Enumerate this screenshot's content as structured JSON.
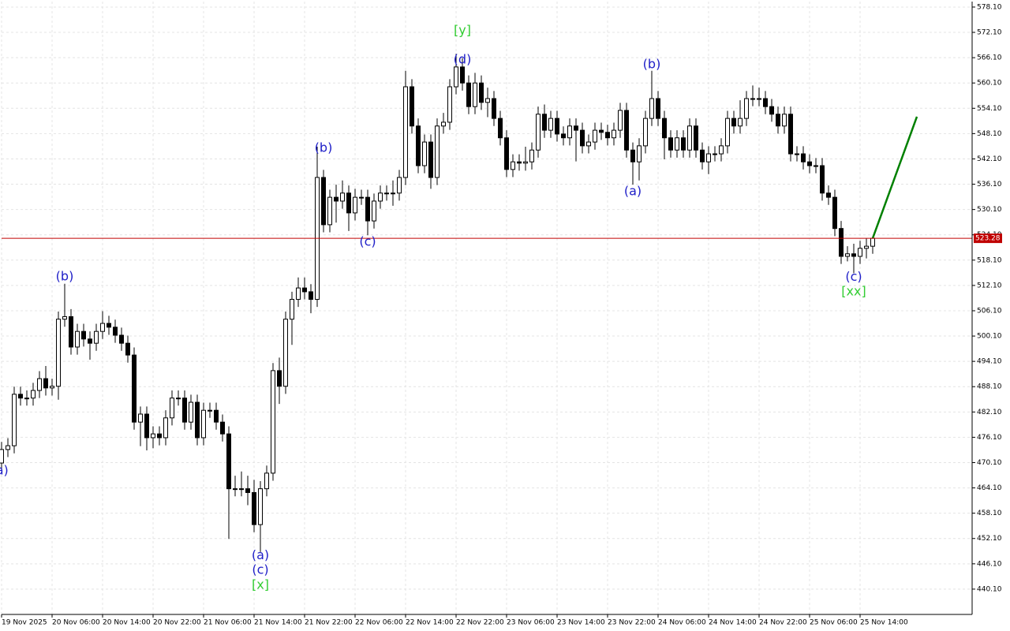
{
  "chart_data": {
    "type": "candlestick",
    "categories": [
      "19 Nov 2025",
      null,
      null,
      null,
      null,
      null,
      null,
      null,
      "20 Nov 06:00",
      null,
      null,
      null,
      null,
      null,
      null,
      null,
      "20 Nov 14:00",
      null,
      null,
      null,
      null,
      null,
      null,
      null,
      "20 Nov 22:00",
      null,
      null,
      null,
      null,
      null,
      null,
      null,
      "21 Nov 06:00",
      null,
      null,
      null,
      null,
      null,
      null,
      null,
      "21 Nov 14:00",
      null,
      null,
      null,
      null,
      null,
      null,
      null,
      "21 Nov 22:00",
      null,
      null,
      null,
      null,
      null,
      null,
      null,
      "22 Nov 06:00",
      null,
      null,
      null,
      null,
      null,
      null,
      null,
      "22 Nov 14:00",
      null,
      null,
      null,
      null,
      null,
      null,
      null,
      "22 Nov 22:00",
      null,
      null,
      null,
      null,
      null,
      null,
      null,
      "23 Nov 06:00",
      null,
      null,
      null,
      null,
      null,
      null,
      null,
      "23 Nov 14:00",
      null,
      null,
      null,
      null,
      null,
      null,
      null,
      "23 Nov 22:00",
      null,
      null,
      null,
      null,
      null,
      null,
      null,
      "24 Nov 06:00",
      null,
      null,
      null,
      null,
      null,
      null,
      null,
      "24 Nov 14:00",
      null,
      null,
      null,
      null,
      null,
      null,
      null,
      "24 Nov 22:00",
      null,
      null,
      null,
      null,
      null,
      null,
      null,
      "25 Nov 06:00",
      null,
      null,
      null,
      null,
      null,
      null,
      null,
      "25 Nov 14:00",
      null,
      null
    ],
    "open": [
      470.0,
      473.2,
      474.1,
      486.3,
      485.4,
      485.4,
      487.2,
      490.0,
      487.8,
      488.2,
      504.1,
      504.7,
      497.5,
      501.2,
      499.4,
      498.4,
      501.2,
      503.1,
      502.2,
      500.3,
      498.4,
      495.6,
      479.7,
      481.6,
      476.0,
      476.9,
      476.0,
      480.7,
      485.4,
      485.4,
      479.7,
      484.4,
      476.0,
      482.5,
      482.5,
      479.7,
      476.9,
      463.9,
      463.9,
      463.9,
      463.0,
      455.4,
      463.9,
      467.6,
      491.9,
      488.2,
      504.1,
      508.8,
      511.5,
      510.6,
      508.8,
      537.7,
      526.5,
      533.0,
      532.1,
      534.0,
      529.3,
      533.0,
      533.0,
      527.4,
      532.1,
      534.0,
      534.0,
      534.0,
      537.7,
      559.2,
      549.9,
      540.5,
      546.1,
      537.7,
      549.9,
      550.8,
      559.2,
      563.9,
      560.1,
      554.5,
      560.1,
      555.5,
      556.4,
      551.7,
      547.1,
      539.6,
      541.4,
      541.1,
      541.4,
      544.2,
      552.7,
      548.9,
      551.7,
      548.0,
      547.1,
      549.9,
      548.9,
      545.2,
      546.1,
      548.9,
      548.4,
      547.1,
      548.9,
      553.6,
      544.2,
      541.4,
      545.2,
      551.7,
      556.4,
      551.7,
      547.1,
      544.2,
      547.1,
      544.2,
      549.9,
      544.2,
      541.4,
      543.3,
      543.3,
      545.2,
      551.7,
      549.9,
      551.7,
      556.4,
      556.4,
      556.4,
      554.5,
      552.7,
      549.9,
      552.7,
      543.3,
      543.3,
      541.4,
      540.5,
      540.5,
      534.0,
      533.0,
      525.6,
      519.0,
      519.6,
      519.0,
      520.9,
      521.4
    ],
    "high": [
      475.0,
      475.9,
      488.1,
      488.1,
      487.2,
      489.0,
      491.8,
      493.0,
      490.0,
      505.9,
      512.5,
      506.5,
      503.0,
      503.0,
      501.2,
      503.0,
      506.0,
      504.9,
      504.0,
      502.1,
      500.2,
      497.4,
      483.4,
      483.4,
      478.7,
      478.7,
      482.5,
      487.2,
      487.2,
      487.2,
      486.2,
      486.2,
      484.3,
      484.3,
      484.3,
      481.5,
      478.7,
      467.0,
      468.0,
      467.0,
      466.0,
      465.7,
      469.4,
      493.7,
      495.0,
      505.9,
      510.6,
      514.0,
      514.0,
      512.4,
      545.0,
      539.5,
      534.8,
      536.0,
      537.0,
      535.8,
      535.0,
      534.8,
      534.8,
      533.9,
      535.8,
      535.8,
      537.0,
      539.5,
      563.0,
      561.0,
      551.7,
      547.9,
      547.9,
      551.7,
      553.0,
      561.0,
      567.0,
      566.0,
      561.9,
      562.5,
      561.9,
      559.0,
      558.2,
      553.5,
      548.9,
      543.2,
      543.2,
      545.0,
      546.0,
      554.5,
      555.0,
      553.5,
      553.5,
      549.8,
      551.7,
      551.7,
      550.7,
      547.9,
      550.7,
      550.7,
      550.2,
      550.7,
      555.4,
      555.4,
      546.0,
      547.0,
      553.5,
      563.0,
      558.2,
      553.5,
      548.9,
      548.9,
      548.9,
      551.7,
      551.7,
      546.0,
      545.1,
      545.1,
      547.0,
      553.5,
      553.5,
      556.0,
      558.2,
      559.5,
      559.0,
      558.2,
      556.3,
      554.5,
      554.5,
      554.5,
      545.1,
      545.1,
      543.2,
      542.3,
      542.3,
      535.8,
      534.8,
      527.4,
      521.4,
      522.0,
      522.7,
      523.2,
      523.6
    ],
    "low": [
      468.2,
      471.4,
      472.3,
      483.6,
      483.6,
      483.6,
      485.4,
      486.0,
      486.0,
      485.0,
      502.3,
      495.7,
      495.7,
      497.6,
      494.5,
      496.6,
      499.4,
      500.4,
      498.5,
      496.6,
      493.8,
      477.9,
      474.0,
      473.0,
      473.5,
      474.2,
      474.2,
      478.9,
      483.6,
      477.9,
      477.9,
      474.2,
      474.2,
      480.7,
      477.9,
      475.1,
      452.0,
      462.1,
      462.1,
      460.0,
      453.6,
      448.9,
      462.1,
      465.8,
      484.0,
      486.4,
      498.0,
      507.0,
      508.8,
      505.5,
      507.0,
      524.7,
      524.7,
      527.0,
      530.3,
      525.0,
      527.5,
      531.2,
      524.0,
      525.6,
      530.3,
      532.2,
      531.0,
      532.2,
      535.9,
      548.1,
      538.7,
      538.7,
      535.0,
      535.9,
      548.1,
      549.0,
      557.4,
      558.3,
      552.7,
      552.7,
      553.7,
      552.0,
      549.9,
      545.3,
      537.8,
      537.8,
      539.3,
      539.3,
      539.6,
      542.4,
      547.1,
      547.1,
      546.2,
      545.3,
      545.3,
      541.5,
      543.4,
      543.4,
      544.3,
      546.6,
      545.3,
      545.3,
      547.1,
      542.4,
      536.0,
      537.0,
      543.4,
      549.9,
      549.9,
      542.0,
      542.4,
      542.4,
      542.4,
      542.4,
      542.4,
      539.6,
      538.5,
      541.5,
      541.5,
      543.4,
      548.1,
      548.1,
      549.9,
      554.6,
      554.6,
      552.7,
      550.9,
      548.1,
      548.1,
      541.5,
      541.5,
      539.6,
      538.7,
      538.7,
      532.2,
      531.2,
      523.8,
      517.2,
      517.8,
      515.0,
      517.2,
      518.5,
      519.6
    ],
    "close": [
      473.2,
      474.1,
      486.3,
      485.4,
      485.4,
      487.2,
      490.0,
      487.8,
      488.2,
      504.1,
      504.7,
      497.5,
      501.2,
      499.4,
      498.4,
      501.2,
      503.1,
      502.2,
      500.3,
      498.4,
      495.6,
      479.7,
      481.6,
      476.0,
      476.9,
      476.0,
      480.7,
      485.4,
      485.4,
      479.7,
      484.4,
      476.0,
      482.5,
      482.5,
      479.7,
      476.9,
      463.9,
      463.9,
      463.9,
      463.0,
      455.4,
      463.9,
      467.6,
      491.9,
      488.2,
      504.1,
      508.8,
      511.5,
      510.6,
      508.8,
      537.7,
      526.5,
      533.0,
      532.1,
      534.0,
      529.3,
      533.0,
      533.0,
      527.4,
      532.1,
      534.0,
      534.0,
      534.0,
      537.7,
      559.2,
      549.9,
      540.5,
      546.1,
      537.7,
      549.9,
      550.8,
      559.2,
      563.9,
      560.1,
      554.5,
      560.1,
      555.5,
      556.4,
      551.7,
      547.1,
      539.6,
      541.4,
      541.1,
      541.4,
      544.2,
      552.7,
      548.9,
      551.7,
      548.0,
      547.1,
      549.9,
      548.9,
      545.2,
      546.1,
      548.9,
      548.4,
      547.1,
      548.9,
      553.6,
      544.2,
      541.4,
      545.2,
      551.7,
      556.4,
      551.7,
      547.1,
      544.2,
      547.1,
      544.2,
      549.9,
      544.2,
      541.4,
      543.3,
      543.3,
      545.2,
      551.7,
      549.9,
      551.7,
      556.4,
      556.4,
      556.4,
      554.5,
      552.7,
      549.9,
      552.7,
      543.3,
      543.3,
      541.4,
      540.5,
      540.5,
      534.0,
      533.0,
      525.6,
      519.0,
      519.6,
      519.0,
      520.9,
      521.4,
      523.28
    ],
    "up_color": "#ffffff",
    "down_color": "#000000",
    "ylim": [
      434.1,
      579.4
    ],
    "yticks": [
      {
        "value": 578.1,
        "label": "578.10"
      },
      {
        "value": 572.1,
        "label": "572.10"
      },
      {
        "value": 566.1,
        "label": "566.10"
      },
      {
        "value": 560.1,
        "label": "560.10"
      },
      {
        "value": 554.1,
        "label": "554.10"
      },
      {
        "value": 548.1,
        "label": "548.10"
      },
      {
        "value": 542.1,
        "label": "542.10"
      },
      {
        "value": 536.1,
        "label": "536.10"
      },
      {
        "value": 530.1,
        "label": "530.10"
      },
      {
        "value": 524.1,
        "label": "524.10"
      },
      {
        "value": 518.1,
        "label": "518.10"
      },
      {
        "value": 512.1,
        "label": "512.10"
      },
      {
        "value": 506.1,
        "label": "506.10"
      },
      {
        "value": 500.1,
        "label": "500.10"
      },
      {
        "value": 494.1,
        "label": "494.10"
      },
      {
        "value": 488.1,
        "label": "488.10"
      },
      {
        "value": 482.1,
        "label": "482.10"
      },
      {
        "value": 476.1,
        "label": "476.10"
      },
      {
        "value": 470.1,
        "label": "470.10"
      },
      {
        "value": 464.1,
        "label": "464.10"
      },
      {
        "value": 458.1,
        "label": "458.10"
      },
      {
        "value": 452.1,
        "label": "452.10"
      },
      {
        "value": 446.1,
        "label": "446.10"
      },
      {
        "value": 440.1,
        "label": "440.10"
      }
    ],
    "grid": true,
    "last_price": {
      "value": 523.28,
      "color": "#c00000"
    },
    "projection": {
      "color": "#008000",
      "x": [
        138,
        145
      ],
      "values": [
        523.28,
        552.1
      ]
    },
    "annotations": [
      {
        "text": "(a)",
        "x": -0.3,
        "y": 468.1,
        "color": "#2020c8"
      },
      {
        "text": "(b)",
        "x": 10,
        "y": 514.1,
        "color": "#2020c8"
      },
      {
        "text": "(a)",
        "x": 41,
        "y": 448.0,
        "color": "#2020c8"
      },
      {
        "text": "(c)",
        "x": 41,
        "y": 444.6,
        "color": "#2020c8"
      },
      {
        "text": "[x]",
        "x": 41,
        "y": 441.0,
        "color": "#32cd32"
      },
      {
        "text": "(b)",
        "x": 51,
        "y": 544.6,
        "color": "#2020c8"
      },
      {
        "text": "(c)",
        "x": 58,
        "y": 522.4,
        "color": "#2020c8"
      },
      {
        "text": "[y]",
        "x": 73,
        "y": 572.5,
        "color": "#32cd32"
      },
      {
        "text": "(d)",
        "x": 73,
        "y": 565.6,
        "color": "#2020c8"
      },
      {
        "text": "(a)",
        "x": 100,
        "y": 534.3,
        "color": "#2020c8"
      },
      {
        "text": "(b)",
        "x": 103,
        "y": 564.4,
        "color": "#2020c8"
      },
      {
        "text": "(c)",
        "x": 135,
        "y": 514.0,
        "color": "#2020c8"
      },
      {
        "text": "[xx]",
        "x": 135,
        "y": 510.6,
        "color": "#32cd32"
      }
    ]
  }
}
